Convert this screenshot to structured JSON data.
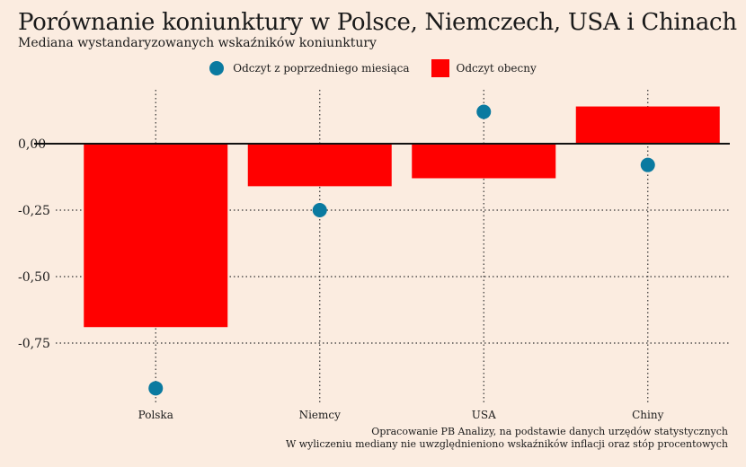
{
  "title": "Porównanie koniunktury w Polsce, Niemczech, USA i Chinach",
  "subtitle": "Mediana wystandaryzowanych wskaźników koniunktury",
  "legend": {
    "previous": "Odczyt z poprzedniego miesiąca",
    "current": "Odczyt obecny"
  },
  "colors": {
    "bar": "#ff0000",
    "dot": "#0a7aa0",
    "background": "#fbece0"
  },
  "captions": {
    "source": "Opracowanie PB Analizy, na podstawie danych urzędów statystycznych",
    "note": "W wyliczeniu mediany nie uwzględnieniono wskaźników inflacji oraz stóp procentowych"
  },
  "chart_data": {
    "type": "bar",
    "categories": [
      "Polska",
      "Niemcy",
      "USA",
      "Chiny"
    ],
    "series": [
      {
        "name": "Odczyt obecny",
        "values": [
          -0.69,
          -0.16,
          -0.13,
          0.14
        ]
      },
      {
        "name": "Odczyt z poprzedniego miesiąca",
        "values": [
          -0.92,
          -0.25,
          0.12,
          -0.08
        ]
      }
    ],
    "ylim": [
      -0.93,
      0.2
    ],
    "yticks": [
      0,
      -0.25,
      -0.5,
      -0.75
    ],
    "ytick_labels": [
      "0,00",
      "-0,25",
      "-0,50",
      "-0,75"
    ],
    "grid": true,
    "legend_position": "top-center"
  }
}
